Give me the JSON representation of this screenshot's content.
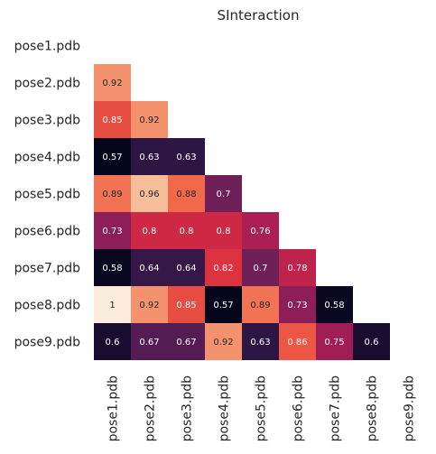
{
  "chart_data": {
    "type": "heatmap",
    "title": "SInteraction",
    "rows": [
      "pose1.pdb",
      "pose2.pdb",
      "pose3.pdb",
      "pose4.pdb",
      "pose5.pdb",
      "pose6.pdb",
      "pose7.pdb",
      "pose8.pdb",
      "pose9.pdb"
    ],
    "columns": [
      "pose1.pdb",
      "pose2.pdb",
      "pose3.pdb",
      "pose4.pdb",
      "pose5.pdb",
      "pose6.pdb",
      "pose7.pdb",
      "pose8.pdb",
      "pose9.pdb"
    ],
    "mask": "upper-triangle-and-diagonal",
    "values": [
      [],
      [
        0.92
      ],
      [
        0.85,
        0.92
      ],
      [
        0.57,
        0.63,
        0.63
      ],
      [
        0.89,
        0.96,
        0.88,
        0.7
      ],
      [
        0.73,
        0.8,
        0.8,
        0.8,
        0.76
      ],
      [
        0.58,
        0.64,
        0.64,
        0.82,
        0.7,
        0.78
      ],
      [
        1,
        0.92,
        0.85,
        0.57,
        0.89,
        0.73,
        0.58
      ],
      [
        0.6,
        0.67,
        0.67,
        0.92,
        0.63,
        0.86,
        0.75,
        0.6
      ]
    ],
    "value_labels": [
      [],
      [
        "0.92"
      ],
      [
        "0.85",
        "0.92"
      ],
      [
        "0.57",
        "0.63",
        "0.63"
      ],
      [
        "0.89",
        "0.96",
        "0.88",
        "0.7"
      ],
      [
        "0.73",
        "0.8",
        "0.8",
        "0.8",
        "0.76"
      ],
      [
        "0.58",
        "0.64",
        "0.64",
        "0.82",
        "0.7",
        "0.78"
      ],
      [
        "1",
        "0.92",
        "0.85",
        "0.57",
        "0.89",
        "0.73",
        "0.58"
      ],
      [
        "0.6",
        "0.67",
        "0.67",
        "0.92",
        "0.63",
        "0.86",
        "0.75",
        "0.6"
      ]
    ],
    "colormap": "rocket",
    "vmin": 0.57,
    "vmax": 1,
    "colorbar": false,
    "grid": false
  }
}
